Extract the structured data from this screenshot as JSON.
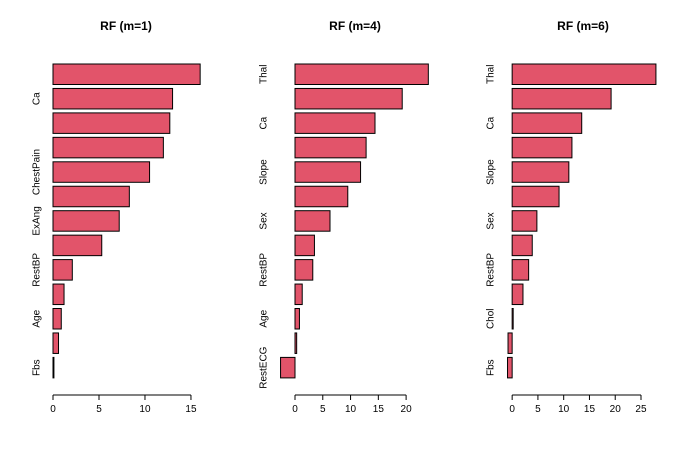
{
  "chart_data": [
    {
      "type": "bar",
      "orientation": "horizontal",
      "title": "RF (m=1)",
      "xlabel": "",
      "ylabel": "",
      "xlim": [
        0,
        16.2
      ],
      "xticks": [
        "0",
        "5",
        "10",
        "15"
      ],
      "values": [
        16.0,
        13.0,
        12.7,
        12.0,
        10.5,
        8.3,
        7.2,
        5.3,
        2.1,
        1.2,
        0.9,
        0.6,
        0.1
      ],
      "categories": [
        "",
        "Ca",
        "",
        "",
        "ChestPain",
        "",
        "ExAng",
        "",
        "RestBP",
        "",
        "Age",
        "",
        "Fbs"
      ],
      "bar_color": "#E2546A"
    },
    {
      "type": "bar",
      "orientation": "horizontal",
      "title": "RF (m=4)",
      "xlabel": "",
      "ylabel": "",
      "xlim": [
        -2.7,
        24.3
      ],
      "xticks": [
        "0",
        "5",
        "10",
        "15",
        "20"
      ],
      "values": [
        24.0,
        19.3,
        14.4,
        12.8,
        11.8,
        9.5,
        6.3,
        3.5,
        3.2,
        1.3,
        0.8,
        0.3,
        -2.6
      ],
      "categories": [
        "Thal",
        "",
        "Ca",
        "",
        "Slope",
        "",
        "Sex",
        "",
        "RestBP",
        "",
        "Age",
        "",
        "RestECG"
      ],
      "bar_color": "#E2546A"
    },
    {
      "type": "bar",
      "orientation": "horizontal",
      "title": "RF (m=6)",
      "xlabel": "",
      "ylabel": "",
      "xlim": [
        -1.0,
        28.3
      ],
      "xticks": [
        "0",
        "5",
        "10",
        "15",
        "20",
        "25"
      ],
      "values": [
        27.9,
        19.2,
        13.5,
        11.6,
        11.0,
        9.1,
        4.8,
        3.9,
        3.2,
        2.1,
        0.2,
        -0.8,
        -0.9
      ],
      "categories": [
        "Thal",
        "",
        "Ca",
        "",
        "Slope",
        "",
        "Sex",
        "",
        "RestBP",
        "",
        "Chol",
        "",
        "Fbs"
      ],
      "bar_color": "#E2546A"
    }
  ]
}
